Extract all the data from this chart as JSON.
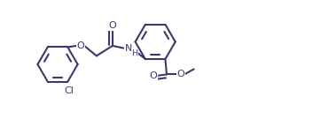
{
  "bg": "#ffffff",
  "lc": "#3a3a6a",
  "lw": 1.5,
  "fs": 8.0,
  "xlim": [
    -0.3,
    10.8
  ],
  "ylim": [
    -0.5,
    4.5
  ]
}
